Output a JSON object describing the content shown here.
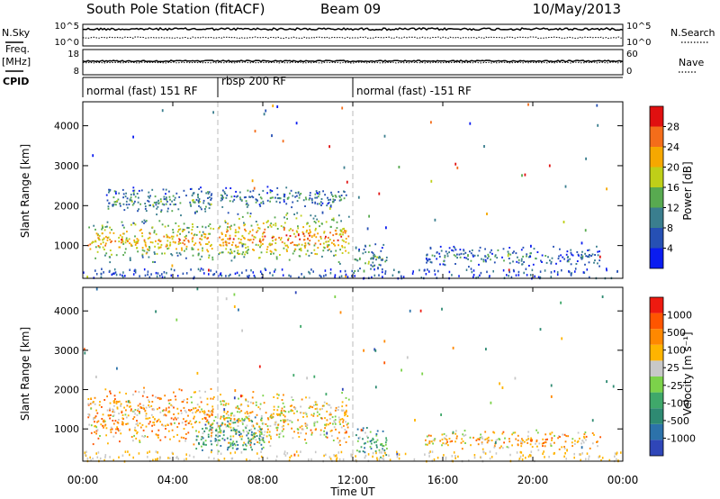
{
  "header": {
    "station": "South Pole Station (fitACF)",
    "beam": "Beam 09",
    "date": "10/May/2013"
  },
  "left_labels": {
    "nsky": "N.Sky",
    "freq_line1": "Freq.",
    "freq_line2": "[MHz]",
    "cpid": "CPID"
  },
  "right_labels": {
    "nsearch": "N.Search",
    "nave": "Nave"
  },
  "cpid_segments": [
    {
      "label": "normal (fast) 151 RF",
      "start_hour": 0
    },
    {
      "label": "rbsp 200 RF",
      "start_hour": 6
    },
    {
      "label": "normal (fast) -151 RF",
      "start_hour": 12
    }
  ],
  "chart_data": [
    {
      "type": "line",
      "name": "noise",
      "x_range_hours": [
        0,
        24
      ],
      "left_ticks": [
        "10^5",
        "10^0"
      ],
      "right_ticks": [
        "10^5",
        "10^0"
      ],
      "log_scale": true
    },
    {
      "type": "line",
      "name": "freq-nave",
      "x_range_hours": [
        0,
        24
      ],
      "left_ticks": [
        "18",
        "8"
      ],
      "right_ticks": [
        "60",
        "0"
      ]
    },
    {
      "type": "heatmap",
      "name": "power",
      "ylabel": "Slant Range [km]",
      "y_range": [
        180,
        4600
      ],
      "y_ticks": [
        "1000",
        "2000",
        "3000",
        "4000"
      ],
      "x_range_hours": [
        0,
        24
      ],
      "colorbar_label": "Power [dB]",
      "colorbar_ticks": [
        "4",
        "8",
        "12",
        "16",
        "20",
        "24",
        "28"
      ],
      "colorbar_colors": [
        "#0a1cf0",
        "#2650b4",
        "#3a7e8e",
        "#58aa50",
        "#bfcf18",
        "#f6a800",
        "#f46d1a",
        "#e01010"
      ],
      "blobs": [
        {
          "t0": 0.2,
          "t1": 5.8,
          "r0": 550,
          "r1": 1700,
          "level": 0.75
        },
        {
          "t0": 1.0,
          "t1": 5.8,
          "r0": 1700,
          "r1": 2500,
          "level": 0.35
        },
        {
          "t0": 6.0,
          "t1": 11.8,
          "r0": 500,
          "r1": 1900,
          "level": 0.8
        },
        {
          "t0": 6.0,
          "t1": 11.8,
          "r0": 1900,
          "r1": 2500,
          "level": 0.3
        },
        {
          "t0": 12.0,
          "t1": 13.5,
          "r0": 250,
          "r1": 1100,
          "level": 0.4
        },
        {
          "t0": 15.2,
          "t1": 23.0,
          "r0": 450,
          "r1": 1000,
          "level": 0.25
        }
      ]
    },
    {
      "type": "heatmap",
      "name": "velocity",
      "ylabel": "Slant Range [km]",
      "y_range": [
        180,
        4600
      ],
      "y_ticks": [
        "1000",
        "2000",
        "3000",
        "4000"
      ],
      "x_range_hours": [
        0,
        24
      ],
      "colorbar_label": "Velocity [m s⁻¹]",
      "colorbar_ticks": [
        "1000",
        "500",
        "100",
        "25",
        "-25",
        "-100",
        "-500",
        "-1000"
      ],
      "colorbar_colors": [
        "#2f46b8",
        "#2c72aa",
        "#2e8a72",
        "#3fa86a",
        "#7cd24a",
        "#c8c8c8",
        "#ffb400",
        "#ff8800",
        "#ff5500",
        "#ee1a10"
      ],
      "blobs": [
        {
          "t0": 0.2,
          "t1": 5.8,
          "r0": 550,
          "r1": 2100,
          "level": -0.5
        },
        {
          "t0": 6.0,
          "t1": 11.8,
          "r0": 500,
          "r1": 2000,
          "level": -0.3
        },
        {
          "t0": 5.0,
          "t1": 8.0,
          "r0": 300,
          "r1": 1400,
          "level": 0.6
        },
        {
          "t0": 12.0,
          "t1": 13.5,
          "r0": 250,
          "r1": 1100,
          "level": 0.5
        },
        {
          "t0": 15.2,
          "t1": 23.0,
          "r0": 450,
          "r1": 1000,
          "level": -0.4
        }
      ]
    }
  ],
  "x_axis": {
    "label": "Time UT",
    "tick_labels": [
      "00:00",
      "04:00",
      "08:00",
      "12:00",
      "16:00",
      "20:00",
      "00:00"
    ]
  }
}
